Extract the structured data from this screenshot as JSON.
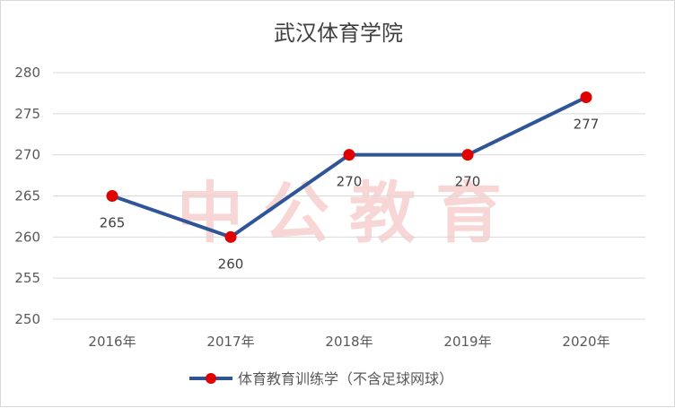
{
  "chart_data": {
    "type": "line",
    "title": "武汉体育学院",
    "categories": [
      "2016年",
      "2017年",
      "2018年",
      "2019年",
      "2020年"
    ],
    "series": [
      {
        "name": "体育教育训练学（不含足球网球）",
        "values": [
          265,
          260,
          270,
          270,
          277
        ],
        "color": "#2f5597",
        "marker_color": "#e00000"
      }
    ],
    "data_labels": [
      "265",
      "260",
      "270",
      "270",
      "277"
    ],
    "yticks": [
      250,
      255,
      260,
      265,
      270,
      275,
      280
    ],
    "ylim": [
      250,
      280
    ],
    "grid": true,
    "legend_position": "bottom",
    "watermark": "中公教育",
    "colors": {
      "grid": "#d9d9d9",
      "text": "#595959",
      "title": "#404040",
      "watermark": "#f4b6b6"
    }
  }
}
